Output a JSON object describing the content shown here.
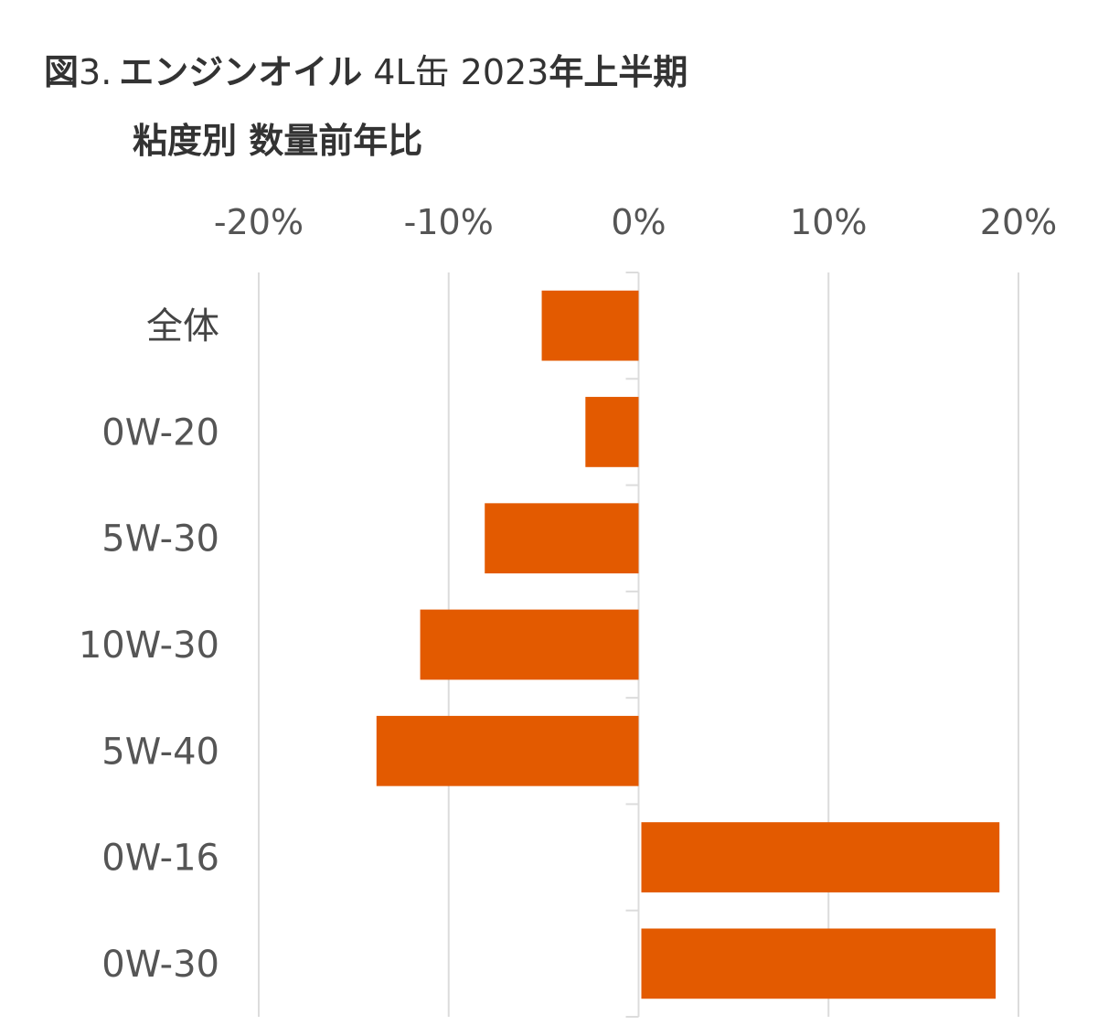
{
  "chart_data": {
    "type": "bar",
    "orientation": "horizontal",
    "title": {
      "prefix": "図",
      "number": "3.",
      "part1": "エンジンオイル",
      "part2": "4L缶",
      "part3": "2023",
      "part4": "年上半期",
      "line2": "粘度別 数量前年比"
    },
    "categories": [
      "全体",
      "0W-20",
      "5W-30",
      "10W-30",
      "5W-40",
      "0W-16",
      "0W-30"
    ],
    "values": [
      -5.1,
      -2.8,
      -8.1,
      -11.5,
      -13.8,
      19.0,
      18.8
    ],
    "xlim": [
      -20,
      20
    ],
    "ticks": [
      -20,
      -10,
      0,
      10,
      20
    ],
    "tick_labels": [
      "-20%",
      "-10%",
      "0%",
      "10%",
      "20%"
    ],
    "bar_color": "#E35A00",
    "grid_color": "#DCDCDC",
    "grid": true
  }
}
